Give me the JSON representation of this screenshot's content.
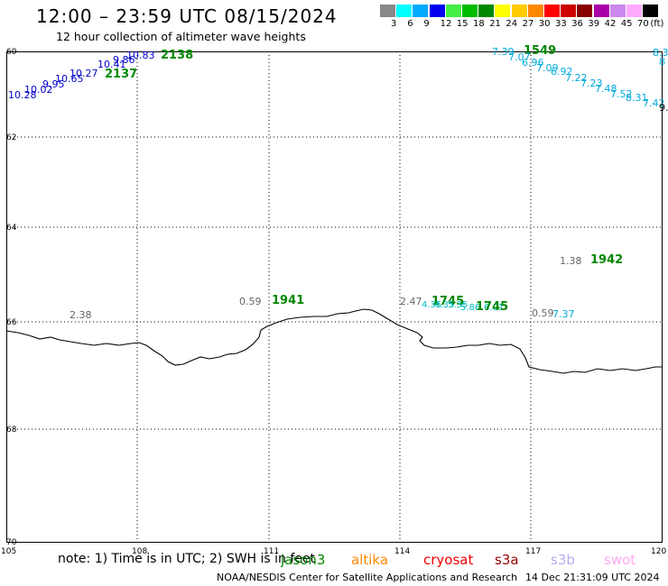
{
  "header": {
    "title": "12:00 – 23:59 UTC 08/15/2024",
    "subtitle": "12 hour collection of altimeter wave heights"
  },
  "legend": {
    "unit": "(ft)",
    "levels": [
      {
        "label": "3",
        "color": "#888888"
      },
      {
        "label": "6",
        "color": "#00ffff"
      },
      {
        "label": "9",
        "color": "#00aaff"
      },
      {
        "label": "12",
        "color": "#0000ee"
      },
      {
        "label": "15",
        "color": "#44ee44"
      },
      {
        "label": "18",
        "color": "#00bb00"
      },
      {
        "label": "21",
        "color": "#008800"
      },
      {
        "label": "24",
        "color": "#ffff00"
      },
      {
        "label": "27",
        "color": "#ffcc00"
      },
      {
        "label": "30",
        "color": "#ff8800"
      },
      {
        "label": "33",
        "color": "#ff0000"
      },
      {
        "label": "36",
        "color": "#cc0000"
      },
      {
        "label": "39",
        "color": "#880000"
      },
      {
        "label": "42",
        "color": "#aa00aa"
      },
      {
        "label": "45",
        "color": "#cc88ee"
      },
      {
        "label": "70",
        "color": "#ffaaff"
      },
      {
        "label": "",
        "color": "#000000"
      }
    ]
  },
  "map": {
    "lon_ticks": [
      "105",
      "108",
      "111",
      "114",
      "117",
      "120"
    ],
    "lat_ticks": [
      "60",
      "62",
      "64",
      "66",
      "68",
      "70"
    ],
    "track_labels": [
      {
        "text": "10.28",
        "color": "#0000cc"
      },
      {
        "text": "10.02",
        "color": "#0000cc"
      },
      {
        "text": "9.95",
        "color": "#0000cc"
      },
      {
        "text": "10.65",
        "color": "#0000cc"
      },
      {
        "text": "10.27",
        "color": "#0000cc"
      },
      {
        "text": "10.41",
        "color": "#0000cc"
      },
      {
        "text": "9.86",
        "color": "#0000cc"
      },
      {
        "text": "10.83",
        "color": "#0000cc"
      },
      {
        "text": "2137",
        "color": "#008800"
      },
      {
        "text": "2138",
        "color": "#008800"
      },
      {
        "text": "2.38",
        "color": "#666666"
      },
      {
        "text": "0.59",
        "color": "#666666"
      },
      {
        "text": "1941",
        "color": "#008800"
      },
      {
        "text": "2.47",
        "color": "#666666"
      },
      {
        "text": "1745",
        "color": "#008800"
      },
      {
        "text": "4.35",
        "color": "#00bbbb"
      },
      {
        "text": "4.35",
        "color": "#00bbbb"
      },
      {
        "text": "5.35",
        "color": "#00bbbb"
      },
      {
        "text": "5.86",
        "color": "#00bbbb"
      },
      {
        "text": "6.01",
        "color": "#00bbbb"
      },
      {
        "text": "1745",
        "color": "#008800"
      },
      {
        "text": "0.59",
        "color": "#666666"
      },
      {
        "text": "7.37",
        "color": "#00aadd"
      },
      {
        "text": "1.38",
        "color": "#666666"
      },
      {
        "text": "1942",
        "color": "#008800"
      },
      {
        "text": "7.39",
        "color": "#00aadd"
      },
      {
        "text": "1549",
        "color": "#008800"
      },
      {
        "text": "7.07",
        "color": "#00aadd"
      },
      {
        "text": "6.96",
        "color": "#00aadd"
      },
      {
        "text": "7.09",
        "color": "#00aadd"
      },
      {
        "text": "6.92",
        "color": "#00aadd"
      },
      {
        "text": "7.22",
        "color": "#00aadd"
      },
      {
        "text": "7.23",
        "color": "#00aadd"
      },
      {
        "text": "7.48",
        "color": "#00aadd"
      },
      {
        "text": "7.52",
        "color": "#00aadd"
      },
      {
        "text": "8.31",
        "color": "#00aadd"
      },
      {
        "text": "7.42",
        "color": "#00aadd"
      },
      {
        "text": "8.3",
        "color": "#00aadd"
      },
      {
        "text": "8",
        "color": "#00aadd"
      },
      {
        "text": "9.",
        "color": "#000000"
      }
    ]
  },
  "footer": {
    "note": "note: 1) Time is in UTC; 2) SWH is in feet",
    "satellites": [
      {
        "name": "jason3",
        "color": "#008800"
      },
      {
        "name": "altika",
        "color": "#ff8800"
      },
      {
        "name": "cryosat",
        "color": "#ee0000"
      },
      {
        "name": "s3a",
        "color": "#990000"
      },
      {
        "name": "s3b",
        "color": "#bbaaee"
      },
      {
        "name": "swot",
        "color": "#ffaaee"
      }
    ],
    "credit": "NOAA/NESDIS Center for Satellite Applications and Research",
    "timestamp": "14 Dec 21:31:09 UTC 2024"
  }
}
